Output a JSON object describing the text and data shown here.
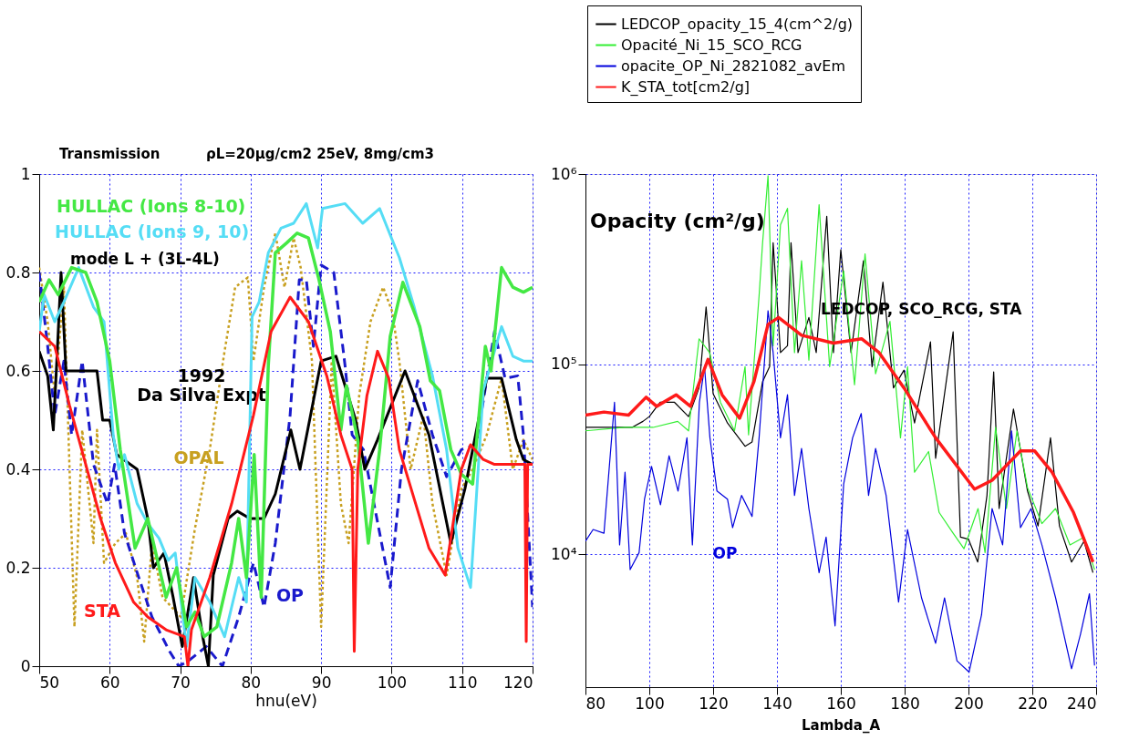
{
  "chart_data": [
    {
      "type": "line",
      "title": "Transmission",
      "subtitle": "ρL=20μg/cm2   25eV, 8mg/cm3",
      "xlabel": "hnu(eV)",
      "xlim": [
        50,
        120
      ],
      "xticks": [
        50,
        60,
        70,
        80,
        90,
        100,
        110,
        120
      ],
      "ylim": [
        0,
        1
      ],
      "yticks": [
        0,
        0.2,
        0.4,
        0.6,
        0.8,
        1
      ],
      "grid": true,
      "annotations": [
        "mode L + (3L-4L)"
      ],
      "series": [
        {
          "name": "OPAL",
          "color": "#c8a020",
          "line_style": "dotted",
          "x": [
            50,
            51.2,
            52.2,
            53.5,
            55.0,
            56.1,
            57.7,
            58.2,
            59.2,
            60.8,
            62.3,
            63.9,
            64.9,
            66.0,
            67.5,
            70.1,
            72.1,
            74.2,
            76.3,
            77.8,
            79.6,
            80.4,
            81.9,
            83.5,
            84.8,
            86.1,
            87.1,
            88.7,
            90.0,
            91.5,
            92.8,
            93.9,
            95.4,
            97.0,
            98.8,
            100.1,
            101.1,
            102.7,
            104.5,
            105.8,
            107.8,
            109.9,
            111.5,
            113.5,
            115.6,
            117.2,
            118.7,
            120
          ],
          "values": [
            0.81,
            0.7,
            0.55,
            0.77,
            0.08,
            0.48,
            0.25,
            0.48,
            0.21,
            0.25,
            0.27,
            0.18,
            0.05,
            0.25,
            0.14,
            0.1,
            0.28,
            0.44,
            0.64,
            0.77,
            0.79,
            0.62,
            0.77,
            0.88,
            0.77,
            0.87,
            0.81,
            0.62,
            0.08,
            0.62,
            0.33,
            0.25,
            0.55,
            0.7,
            0.77,
            0.72,
            0.62,
            0.4,
            0.51,
            0.33,
            0.185,
            0.36,
            0.4,
            0.47,
            0.585,
            0.4,
            0.46,
            0.42
          ]
        },
        {
          "name": "OP",
          "color": "#1a1acc",
          "line_style": "dashed",
          "x": [
            50,
            51.2,
            52.2,
            53.5,
            54.6,
            56.1,
            57.7,
            59.7,
            60.7,
            62.1,
            63.9,
            66.0,
            68.5,
            69.8,
            71.1,
            73.7,
            76.0,
            78.3,
            80.4,
            81.9,
            83.5,
            85.6,
            86.9,
            87.9,
            88.9,
            90.0,
            91.8,
            93.4,
            94.4,
            96.0,
            97.5,
            99.8,
            101.4,
            103.7,
            105.8,
            107.8,
            109.9,
            112.0,
            114.6,
            116.1,
            117.9,
            118.7,
            120
          ],
          "values": [
            0.8,
            0.65,
            0.51,
            0.62,
            0.47,
            0.62,
            0.41,
            0.33,
            0.41,
            0.27,
            0.19,
            0.1,
            0.03,
            0.0,
            0.01,
            0.04,
            0.0,
            0.1,
            0.21,
            0.12,
            0.25,
            0.51,
            0.785,
            0.785,
            0.65,
            0.815,
            0.8,
            0.61,
            0.47,
            0.44,
            0.33,
            0.16,
            0.4,
            0.58,
            0.47,
            0.385,
            0.44,
            0.45,
            0.68,
            0.585,
            0.59,
            0.47,
            0.12
          ]
        },
        {
          "name": "1992\nDa Silva Expt",
          "color": "#000000",
          "line_style": "solid",
          "x": [
            50,
            51.2,
            52.0,
            52.6,
            53.1,
            53.8,
            58.2,
            59.0,
            60.0,
            61.0,
            63.9,
            65.4,
            66.2,
            67.7,
            69.0,
            70.3,
            71.9,
            73.2,
            74.0,
            74.7,
            76.8,
            78.1,
            79.9,
            81.9,
            83.5,
            85.7,
            87.0,
            90.0,
            92.1,
            94.9,
            96.2,
            98.0,
            101.9,
            105.3,
            108.4,
            110.4,
            113.5,
            115.6,
            117.7,
            118.7,
            120
          ],
          "values": [
            0.64,
            0.59,
            0.48,
            0.65,
            0.8,
            0.6,
            0.6,
            0.5,
            0.5,
            0.43,
            0.4,
            0.3,
            0.2,
            0.23,
            0.14,
            0.04,
            0.18,
            0.06,
            0.0,
            0.185,
            0.3,
            0.315,
            0.3,
            0.3,
            0.35,
            0.48,
            0.4,
            0.62,
            0.63,
            0.5,
            0.4,
            0.46,
            0.6,
            0.47,
            0.25,
            0.36,
            0.585,
            0.585,
            0.46,
            0.42,
            0.41
          ]
        },
        {
          "name": "HULLAC (Ions 9, 10)",
          "color": "#55ddf5",
          "line_style": "solid",
          "x": [
            50,
            50.7,
            52.2,
            53.5,
            55.6,
            57.7,
            59.2,
            60.5,
            61.3,
            62.1,
            63.9,
            65.4,
            67.0,
            68.3,
            69.3,
            70.9,
            72.1,
            74.2,
            76.3,
            78.3,
            79.4,
            80.2,
            81.2,
            82.5,
            84.3,
            86.1,
            87.9,
            89.5,
            90.2,
            93.4,
            95.9,
            98.3,
            101.1,
            103.2,
            105.8,
            107.8,
            109.4,
            111.2,
            113.0,
            115.6,
            117.2,
            118.7,
            120
          ],
          "values": [
            0.68,
            0.755,
            0.7,
            0.74,
            0.81,
            0.73,
            0.7,
            0.47,
            0.4,
            0.43,
            0.33,
            0.29,
            0.26,
            0.215,
            0.23,
            0.04,
            0.18,
            0.13,
            0.06,
            0.18,
            0.13,
            0.71,
            0.74,
            0.84,
            0.89,
            0.9,
            0.94,
            0.85,
            0.93,
            0.94,
            0.9,
            0.93,
            0.83,
            0.73,
            0.59,
            0.44,
            0.24,
            0.16,
            0.56,
            0.69,
            0.63,
            0.62,
            0.62
          ]
        },
        {
          "name": "HULLAC (Ions 8-10)",
          "color": "#44e844",
          "line_style": "solid",
          "x": [
            50,
            51.4,
            52.7,
            54.6,
            56.6,
            58.2,
            60,
            61.5,
            63.6,
            65.4,
            68.0,
            69.5,
            70.9,
            72.1,
            73.4,
            75.2,
            77.3,
            78.3,
            79.4,
            80.5,
            81.5,
            82.5,
            83.5,
            85.1,
            86.6,
            88.2,
            89.7,
            91.3,
            92.8,
            93.6,
            95.2,
            96.7,
            98.3,
            99.8,
            101.6,
            104.0,
            105.5,
            106.8,
            108.4,
            109.9,
            111.5,
            113.3,
            114.1,
            115.6,
            117.2,
            118.7,
            120
          ],
          "values": [
            0.74,
            0.785,
            0.755,
            0.81,
            0.8,
            0.74,
            0.62,
            0.44,
            0.24,
            0.3,
            0.14,
            0.2,
            0.08,
            0.11,
            0.06,
            0.08,
            0.21,
            0.3,
            0.18,
            0.43,
            0.14,
            0.61,
            0.84,
            0.86,
            0.88,
            0.87,
            0.785,
            0.68,
            0.48,
            0.57,
            0.46,
            0.25,
            0.44,
            0.67,
            0.78,
            0.69,
            0.58,
            0.56,
            0.44,
            0.39,
            0.37,
            0.65,
            0.6,
            0.81,
            0.77,
            0.76,
            0.77
          ]
        },
        {
          "name": "STA",
          "color": "#ff1a1a",
          "line_style": "solid",
          "x": [
            50,
            52.2,
            54.3,
            56.6,
            58.7,
            60.8,
            63.4,
            65.4,
            68.0,
            70.6,
            71.1,
            71.6,
            74.2,
            77.3,
            80.4,
            82.9,
            85.6,
            88.2,
            90.8,
            92.8,
            94.4,
            94.7,
            95.2,
            96.5,
            98.0,
            99.6,
            101.1,
            103.2,
            105.3,
            107.6,
            109.9,
            111.2,
            113.0,
            114.6,
            117.2,
            118.9,
            119.1,
            119.3,
            120
          ],
          "values": [
            0.68,
            0.65,
            0.53,
            0.41,
            0.3,
            0.21,
            0.13,
            0.1,
            0.074,
            0.06,
            0.0,
            0.074,
            0.18,
            0.33,
            0.51,
            0.68,
            0.75,
            0.7,
            0.59,
            0.47,
            0.4,
            0.03,
            0.4,
            0.55,
            0.64,
            0.585,
            0.44,
            0.34,
            0.24,
            0.185,
            0.4,
            0.45,
            0.42,
            0.41,
            0.41,
            0.41,
            0.05,
            0.41,
            0.41
          ]
        }
      ]
    },
    {
      "type": "line",
      "ylabel": "Opacity (cm²/g)",
      "xlabel": "Lambda_A",
      "xlim": [
        80,
        240
      ],
      "xticks": [
        80,
        100,
        120,
        140,
        160,
        180,
        200,
        220,
        240
      ],
      "ylim": [
        2000,
        1000000
      ],
      "log": true,
      "yticks": [
        {
          "value": 10000,
          "label": "10⁴"
        },
        {
          "value": 100000,
          "label": "10⁵"
        },
        {
          "value": 1000000,
          "label": "10⁶"
        }
      ],
      "grid": true,
      "legend": "top",
      "annotations": [
        "LEDCOP,  SCO_RCG,  STA",
        "OP"
      ],
      "series": [
        {
          "name": "LEDCOP_opacity_15_4(cm^2/g)",
          "color": "#000000",
          "x": [
            80,
            86.9,
            94.6,
            98.0,
            100,
            103.4,
            107.9,
            112.3,
            115.6,
            117.8,
            120,
            124.5,
            130,
            132.2,
            135.5,
            137.7,
            138.8,
            141.1,
            143.3,
            144.4,
            146.6,
            150,
            152.3,
            155.6,
            157.7,
            160,
            163.2,
            167.1,
            169.8,
            173.2,
            176.5,
            179.8,
            183.1,
            188.1,
            189.7,
            195.2,
            197.5,
            200,
            202.9,
            205.8,
            207.9,
            209.6,
            214.1,
            218.5,
            221.8,
            225.7,
            228.5,
            232.3,
            236.2,
            239.0
          ],
          "values": [
            46500,
            46500,
            46500,
            50000,
            53000,
            63000,
            63000,
            53000,
            75000,
            200000,
            70000,
            49000,
            37000,
            39000,
            81000,
            97000,
            435000,
            115000,
            125000,
            435000,
            115000,
            176000,
            115000,
            600000,
            115000,
            400000,
            115000,
            350000,
            97000,
            270000,
            75000,
            93000,
            49000,
            131000,
            32000,
            148000,
            12300,
            12000,
            9100,
            20400,
            91000,
            17400,
            58000,
            21500,
            14100,
            41000,
            14100,
            9100,
            11700,
            8000
          ]
        },
        {
          "name": "Opacité_Ni_15_SCO_RCG",
          "color": "#33ee33",
          "x": [
            80,
            92.4,
            101.2,
            108.9,
            112.3,
            115.6,
            118.9,
            122.3,
            126.7,
            130,
            131.1,
            134.4,
            135.5,
            137.2,
            138.8,
            141.1,
            143.3,
            145.5,
            147.7,
            150,
            153.2,
            156.5,
            160.9,
            164.3,
            167.6,
            170.9,
            175.4,
            178.7,
            180.9,
            183.1,
            187.5,
            190.8,
            195.2,
            198.6,
            203.0,
            205.2,
            208.5,
            211.9,
            215.2,
            218.5,
            223.0,
            227.3,
            231.8,
            236.2,
            239.5
          ],
          "values": [
            44600,
            46500,
            46500,
            50000,
            44600,
            136000,
            115000,
            63000,
            44600,
            97000,
            42500,
            229000,
            435000,
            980000,
            125000,
            540000,
            660000,
            115000,
            350000,
            105000,
            690000,
            97000,
            309000,
            78000,
            380000,
            89000,
            168000,
            41000,
            97000,
            27000,
            34700,
            16600,
            12900,
            10700,
            17400,
            10200,
            46500,
            17400,
            44600,
            22400,
            14500,
            17400,
            11200,
            12300,
            8300
          ]
        },
        {
          "name": "opacite_OP_Ni_2821082_avEm",
          "color": "#0000dd",
          "x": [
            80,
            82.4,
            85.8,
            89.1,
            90.7,
            92.4,
            94.0,
            96.8,
            98.5,
            100.7,
            103.5,
            106.2,
            109.0,
            111.8,
            113.5,
            115.7,
            117.3,
            119.0,
            121.2,
            124.5,
            126.1,
            128.9,
            132.2,
            134.4,
            137.2,
            138.8,
            141.1,
            143.3,
            145.5,
            147.7,
            150,
            153.2,
            155.4,
            158.2,
            160.9,
            163.7,
            166.4,
            168.7,
            170.9,
            174.2,
            178.1,
            180.9,
            185.3,
            189.7,
            192.5,
            196.4,
            200.2,
            204.1,
            207.4,
            210.7,
            213.5,
            216.3,
            219.6,
            223.0,
            227.3,
            232.3,
            235.1,
            237.9,
            239.5
          ],
          "values": [
            11700,
            13500,
            12900,
            63000,
            11200,
            27000,
            8300,
            10200,
            19500,
            29000,
            18200,
            33000,
            21500,
            41000,
            11200,
            63000,
            97000,
            41000,
            21500,
            19500,
            13800,
            20400,
            15800,
            41000,
            191000,
            115000,
            41000,
            69000,
            20400,
            36000,
            17400,
            8000,
            12300,
            4200,
            23400,
            41000,
            55000,
            20400,
            36000,
            20400,
            5600,
            13500,
            5900,
            3400,
            5900,
            2750,
            2400,
            4800,
            17400,
            11200,
            44600,
            13800,
            17400,
            11200,
            5900,
            2500,
            3800,
            6200,
            2600
          ]
        },
        {
          "name": "K_STA_tot[cm2/g]",
          "color": "#ff1a1a",
          "x": [
            80,
            85.8,
            93.5,
            99.0,
            102.3,
            108.4,
            112.9,
            118.4,
            122.8,
            128.3,
            132.8,
            137.2,
            140.5,
            147.7,
            157.7,
            166.5,
            172.0,
            179.8,
            189.7,
            201.9,
            207.4,
            216.3,
            220.7,
            226.2,
            232.9,
            239.0
          ],
          "values": [
            54000,
            56000,
            54000,
            67000,
            60000,
            69000,
            60000,
            106000,
            69000,
            52000,
            81000,
            162000,
            176000,
            142000,
            129000,
            136000,
            115000,
            75000,
            41000,
            22000,
            24500,
            35000,
            35000,
            27000,
            16600,
            9100
          ]
        }
      ]
    }
  ]
}
